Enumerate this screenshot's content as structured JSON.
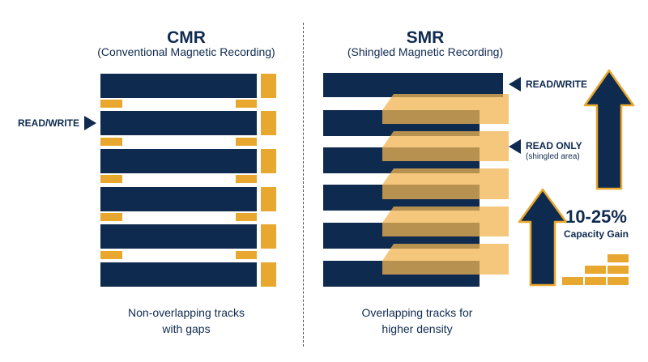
{
  "colors": {
    "navy": "#0f2a4f",
    "gold": "#e8a72e",
    "gold_light": "#f3c77a",
    "gold_dark": "#b88a42"
  },
  "cmr": {
    "title": "CMR",
    "subtitle": "(Conventional Magnetic Recording)",
    "head_label": "READ/WRITE",
    "caption_line1": "Non-overlapping tracks",
    "caption_line2": "with gaps"
  },
  "smr": {
    "title": "SMR",
    "subtitle": "(Shingled Magnetic Recording)",
    "read_write_label": "READ/WRITE",
    "read_only_label": "READ ONLY",
    "read_only_sub": "(shingled area)",
    "caption_line1": "Overlapping tracks for",
    "caption_line2": "higher density"
  },
  "gain": {
    "value": "10-25%",
    "label": "Capacity Gain"
  },
  "icons": {
    "arrow_up": "arrow-up-icon",
    "pointer": "triangle-pointer-icon",
    "bricks": "stacked-bricks-icon"
  }
}
